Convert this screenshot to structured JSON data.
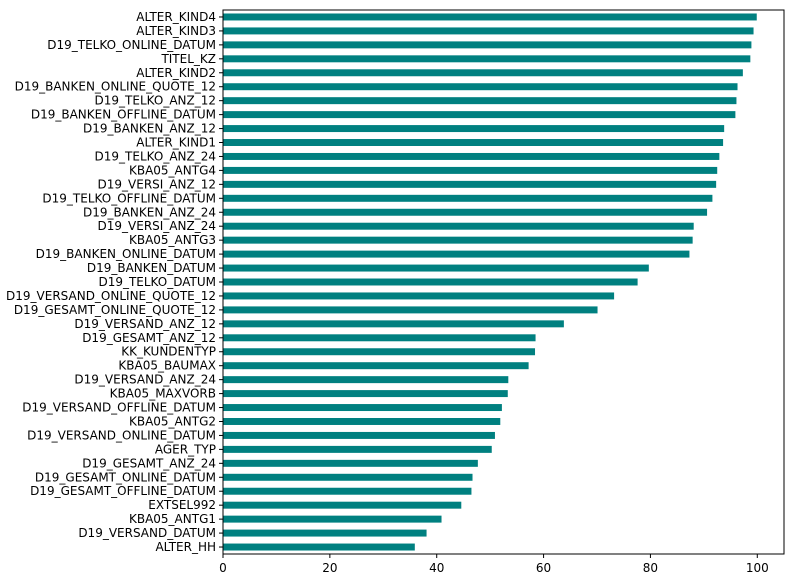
{
  "chart_data": {
    "type": "bar",
    "orientation": "horizontal",
    "color": "#008080",
    "grid": false,
    "xlim": [
      0,
      105
    ],
    "xticks": [
      0,
      20,
      40,
      60,
      80,
      100
    ],
    "categories": [
      "ALTER_KIND4",
      "ALTER_KIND3",
      "D19_TELKO_ONLINE_DATUM",
      "TITEL_KZ",
      "ALTER_KIND2",
      "D19_BANKEN_ONLINE_QUOTE_12",
      "D19_TELKO_ANZ_12",
      "D19_BANKEN_OFFLINE_DATUM",
      "D19_BANKEN_ANZ_12",
      "ALTER_KIND1",
      "D19_TELKO_ANZ_24",
      "KBA05_ANTG4",
      "D19_VERSI_ANZ_12",
      "D19_TELKO_OFFLINE_DATUM",
      "D19_BANKEN_ANZ_24",
      "D19_VERSI_ANZ_24",
      "KBA05_ANTG3",
      "D19_BANKEN_ONLINE_DATUM",
      "D19_BANKEN_DATUM",
      "D19_TELKO_DATUM",
      "D19_VERSAND_ONLINE_QUOTE_12",
      "D19_GESAMT_ONLINE_QUOTE_12",
      "D19_VERSAND_ANZ_12",
      "D19_GESAMT_ANZ_12",
      "KK_KUNDENTYP",
      "KBA05_BAUMAX",
      "D19_VERSAND_ANZ_24",
      "KBA05_MAXVORB",
      "D19_VERSAND_OFFLINE_DATUM",
      "KBA05_ANTG2",
      "D19_VERSAND_ONLINE_DATUM",
      "AGER_TYP",
      "D19_GESAMT_ANZ_24",
      "D19_GESAMT_ONLINE_DATUM",
      "D19_GESAMT_OFFLINE_DATUM",
      "EXTSEL992",
      "KBA05_ANTG1",
      "D19_VERSAND_DATUM",
      "ALTER_HH"
    ],
    "values": [
      99.9,
      99.3,
      98.9,
      98.7,
      97.3,
      96.3,
      96.1,
      95.9,
      93.8,
      93.6,
      92.9,
      92.5,
      92.3,
      91.6,
      90.6,
      88.1,
      87.9,
      87.3,
      79.7,
      77.6,
      73.2,
      70.1,
      63.8,
      58.5,
      58.4,
      57.2,
      53.4,
      53.3,
      52.2,
      51.9,
      50.9,
      50.3,
      47.7,
      46.7,
      46.5,
      44.6,
      40.9,
      38.1,
      35.9
    ]
  }
}
